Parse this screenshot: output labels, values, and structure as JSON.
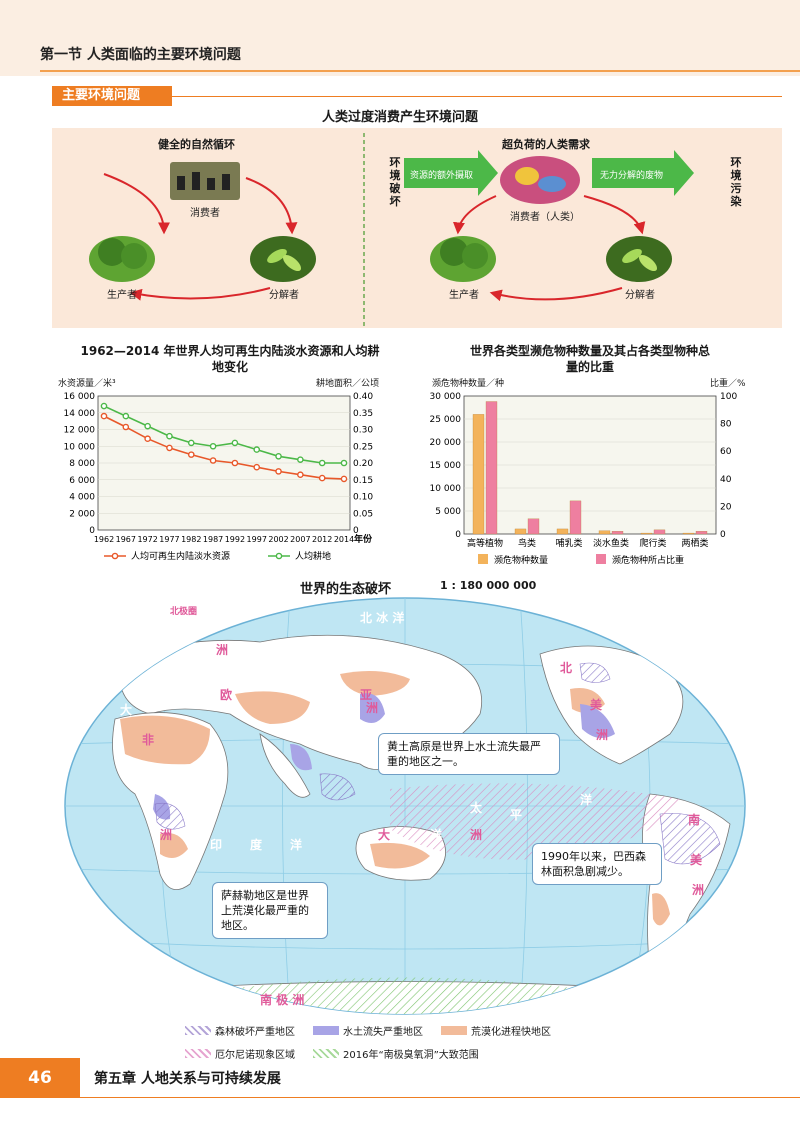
{
  "header": {
    "section_title": "第一节  人类面临的主要环境问题"
  },
  "section_tag": "主要环境问题",
  "diagram": {
    "title": "人类过度消费产生环境问题",
    "left": {
      "heading": "健全的自然循环",
      "consumer": "消费者",
      "producer": "生产者",
      "decomposer": "分解者"
    },
    "right": {
      "heading": "超负荷的人类需求",
      "consumer": "消费者（人类）",
      "producer": "生产者",
      "decomposer": "分解者",
      "left_vertical": "环境破坏",
      "right_vertical": "环境污染",
      "arrow_in": "资源的额外摄取",
      "arrow_out": "无力分解的废物"
    }
  },
  "chart_data": [
    {
      "type": "line",
      "title": "1962—2014 年世界人均可再生内陆淡水资源和人均耕地变化",
      "ylabel": "水资源量／米³",
      "y2label": "耕地面积／公顷",
      "xlabel": "年份",
      "x": [
        "1962",
        "1967",
        "1972",
        "1977",
        "1982",
        "1987",
        "1992",
        "1997",
        "2002",
        "2007",
        "2012",
        "2014"
      ],
      "ylim": [
        0,
        16000
      ],
      "y2lim": [
        0,
        0.4
      ],
      "yticks": [
        "0",
        "2 000",
        "4 000",
        "6 000",
        "8 000",
        "10 000",
        "12 000",
        "14 000",
        "16 000"
      ],
      "y2ticks": [
        "0",
        "0.05",
        "0.10",
        "0.15",
        "0.20",
        "0.25",
        "0.30",
        "0.35",
        "0.40"
      ],
      "series": [
        {
          "name": "人均可再生内陆淡水资源",
          "axis": "left",
          "color": "#e8582a",
          "values": [
            13600,
            12300,
            10900,
            9800,
            9000,
            8300,
            8000,
            7500,
            7000,
            6600,
            6200,
            6100
          ]
        },
        {
          "name": "人均耕地",
          "axis": "right",
          "color": "#4cb848",
          "values": [
            0.37,
            0.34,
            0.31,
            0.28,
            0.26,
            0.25,
            0.26,
            0.24,
            0.22,
            0.21,
            0.2,
            0.2
          ]
        }
      ]
    },
    {
      "type": "bar",
      "title": "世界各类型濒危物种数量及其占各类型物种总量的比重",
      "ylabel": "濒危物种数量／种",
      "y2label": "比重／%",
      "categories": [
        "高等植物",
        "鸟类",
        "哺乳类",
        "淡水鱼类",
        "爬行类",
        "两栖类"
      ],
      "ylim": [
        0,
        30000
      ],
      "y2lim": [
        0,
        100
      ],
      "yticks": [
        "0",
        "5 000",
        "10 000",
        "15 000",
        "20 000",
        "25 000",
        "30 000"
      ],
      "y2ticks": [
        "0",
        "20",
        "40",
        "60",
        "80",
        "100"
      ],
      "series": [
        {
          "name": "濒危物种数量",
          "axis": "left",
          "color": "#f3b35b",
          "values": [
            26000,
            1100,
            1100,
            700,
            200,
            200
          ]
        },
        {
          "name": "濒危物种所占比重",
          "axis": "right",
          "color": "#ee7fa0",
          "values": [
            96,
            11,
            24,
            2,
            3,
            2
          ]
        }
      ]
    }
  ],
  "map": {
    "title": "世界的生态破坏",
    "scale": "1 : 180 000 000",
    "callouts": {
      "loess": "黄土高原是世界上水土流失最严重的地区之一。",
      "amazon": "1990年以来，巴西森林面积急剧减少。",
      "sahel": "萨赫勒地区是世界上荒漠化最严重的地区。"
    },
    "labels": {
      "arctic": "北    冰    洋",
      "asia_a": "亚",
      "asia_b": "洲",
      "europe_a": "欧",
      "europe_b": "洲",
      "africa_a": "非",
      "africa_b": "洲",
      "indian_a": "印",
      "indian_b": "度",
      "indian_c": "洋",
      "pacific_a": "太",
      "pacific_b": "平",
      "pacific_c": "洋",
      "oceania_a": "大",
      "oceania_b": "洋",
      "oceania_c": "洲",
      "na_a": "北",
      "na_b": "美",
      "na_c": "洲",
      "sa_a": "南",
      "sa_b": "美",
      "sa_c": "洲",
      "antarctica": "南    极    洲",
      "west_a": "大",
      "west_b": "洋",
      "arctic_circle": "北极圈"
    },
    "legend": [
      {
        "label": "森林破坏严重地区",
        "color": "#b4a5d8"
      },
      {
        "label": "水土流失严重地区",
        "color": "#a8a4e6"
      },
      {
        "label": "荒漠化进程快地区",
        "color": "#f2bb9a"
      },
      {
        "label": "厄尔尼诺现象区域",
        "color": "#e6a5d0"
      },
      {
        "label": "2016年“南极臭氧洞”大致范围",
        "color": "#a7d99a"
      }
    ]
  },
  "footer": {
    "page_number": "46",
    "chapter": "第五章   人地关系与可持续发展"
  }
}
